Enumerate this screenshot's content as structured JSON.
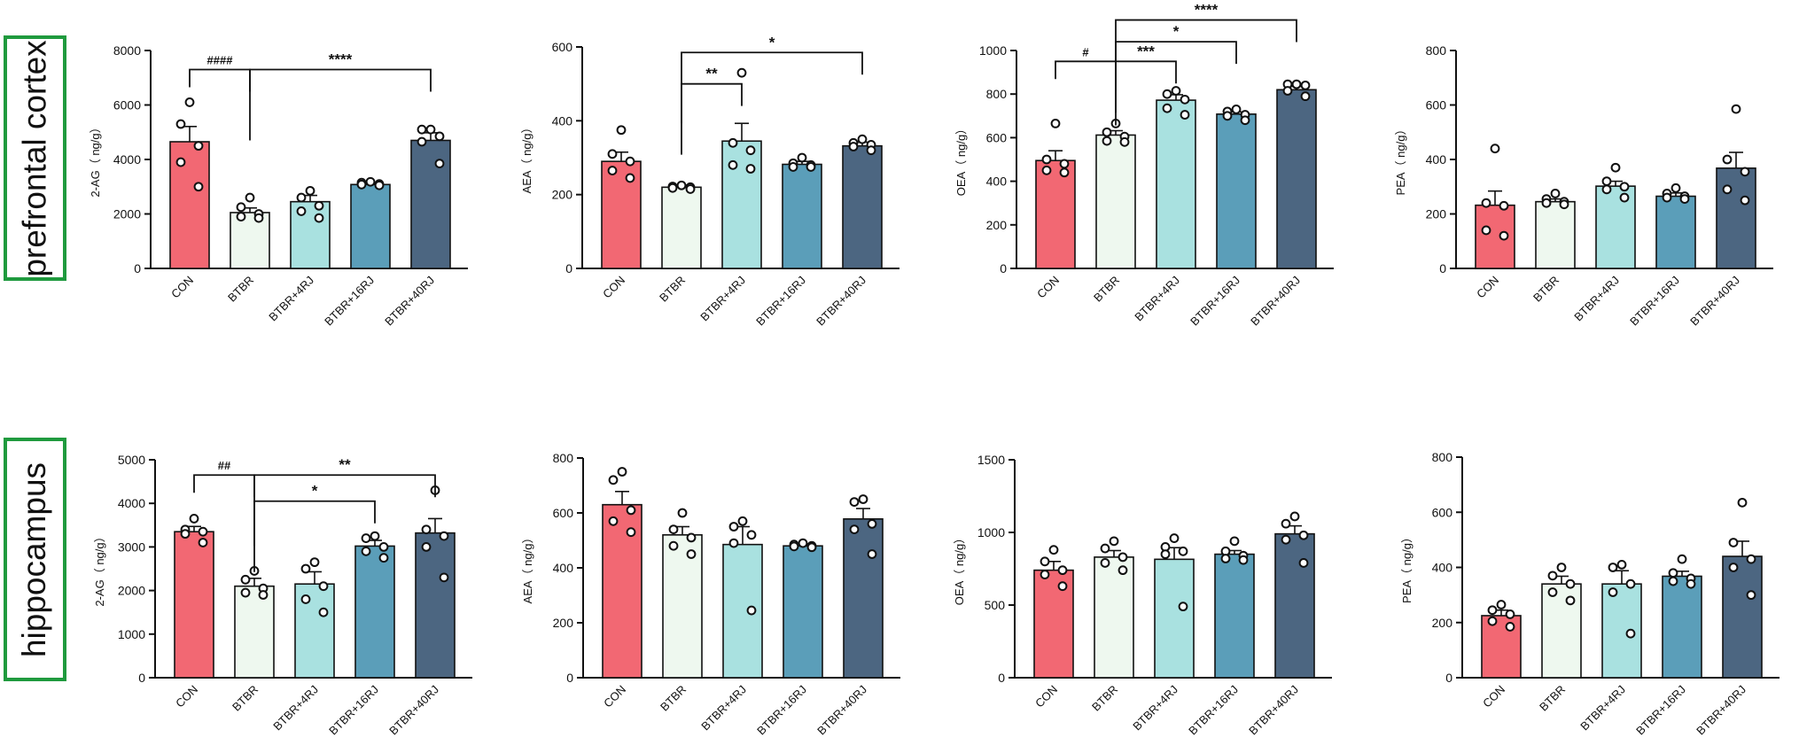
{
  "regions": [
    "prefrontal cortex",
    "hippocampus"
  ],
  "colors": {
    "CON": "#f26873",
    "BTBR": "#eef8ef",
    "BTBR+4RJ": "#a9e1e0",
    "BTBR+16RJ": "#5b9eb9",
    "BTBR+40RJ": "#4c6681",
    "region_border": "#1f9a3e"
  },
  "chart_data": [
    {
      "type": "bar",
      "region": "prefrontal cortex",
      "categories": [
        "CON",
        "BTBR",
        "BTBR+4RJ",
        "BTBR+16RJ",
        "BTBR+40RJ"
      ],
      "ylabel": "2-AG（ ng/g）",
      "ylim": [
        0,
        8000
      ],
      "yticks": [
        "0",
        "2000",
        "4000",
        "6000",
        "8000"
      ],
      "values": [
        4650,
        2050,
        2450,
        3080,
        4700
      ],
      "sem": [
        560,
        170,
        230,
        60,
        280
      ],
      "points": [
        [
          6100,
          5300,
          4500,
          3900,
          3000
        ],
        [
          2600,
          2250,
          2000,
          1900,
          1850
        ],
        [
          2850,
          2600,
          2300,
          2100,
          1850
        ],
        [
          3180,
          3150,
          3100,
          3080,
          3050
        ],
        [
          5100,
          5100,
          4850,
          4650,
          3850
        ]
      ],
      "annotations": [
        {
          "from": 0,
          "to": 1,
          "label": "####",
          "y": 7300
        },
        {
          "from": 1,
          "to": 4,
          "label": "****",
          "y": 7300
        }
      ]
    },
    {
      "type": "bar",
      "region": "prefrontal cortex",
      "categories": [
        "CON",
        "BTBR",
        "BTBR+4RJ",
        "BTBR+16RJ",
        "BTBR+40RJ"
      ],
      "ylabel": "AEA（ ng/g）",
      "ylim": [
        0,
        600
      ],
      "yticks": [
        "0",
        "200",
        "400",
        "600"
      ],
      "values": [
        290,
        220,
        345,
        282,
        332
      ],
      "sem": [
        25,
        6,
        48,
        8,
        10
      ],
      "points": [
        [
          375,
          310,
          290,
          265,
          245
        ],
        [
          225,
          222,
          220,
          218,
          215
        ],
        [
          530,
          340,
          320,
          280,
          270
        ],
        [
          300,
          285,
          280,
          275,
          275
        ],
        [
          350,
          340,
          335,
          330,
          320
        ]
      ],
      "annotations": [
        {
          "from": 1,
          "to": 2,
          "label": "**",
          "y": 500
        },
        {
          "from": 1,
          "to": 4,
          "label": "*",
          "y": 585
        }
      ]
    },
    {
      "type": "bar",
      "region": "prefrontal cortex",
      "categories": [
        "CON",
        "BTBR",
        "BTBR+4RJ",
        "BTBR+16RJ",
        "BTBR+40RJ"
      ],
      "ylabel": "OEA（ ng/g）",
      "ylim": [
        0,
        1000
      ],
      "yticks": [
        "0",
        "200",
        "400",
        "600",
        "800",
        "1000"
      ],
      "values": [
        495,
        612,
        772,
        708,
        820
      ],
      "sem": [
        45,
        20,
        25,
        10,
        15
      ],
      "points": [
        [
          665,
          500,
          480,
          450,
          440
        ],
        [
          665,
          625,
          605,
          585,
          580
        ],
        [
          815,
          800,
          775,
          735,
          705
        ],
        [
          730,
          720,
          705,
          700,
          680
        ],
        [
          845,
          845,
          840,
          815,
          790
        ]
      ],
      "annotations": [
        {
          "from": 0,
          "to": 1,
          "label": "#",
          "y": 950
        },
        {
          "from": 1,
          "to": 2,
          "label": "***",
          "y": 950
        },
        {
          "from": 1,
          "to": 3,
          "label": "*",
          "y": 1040
        },
        {
          "from": 1,
          "to": 4,
          "label": "****",
          "y": 1140
        }
      ]
    },
    {
      "type": "bar",
      "region": "prefrontal cortex",
      "categories": [
        "CON",
        "BTBR",
        "BTBR+4RJ",
        "BTBR+16RJ",
        "BTBR+40RJ"
      ],
      "ylabel": "PEA（ ng/g）",
      "ylim": [
        0,
        800
      ],
      "yticks": [
        "0",
        "200",
        "400",
        "600",
        "800"
      ],
      "values": [
        232,
        245,
        302,
        265,
        368
      ],
      "sem": [
        52,
        10,
        18,
        12,
        58
      ],
      "points": [
        [
          440,
          240,
          230,
          140,
          120
        ],
        [
          275,
          255,
          245,
          240,
          235
        ],
        [
          370,
          320,
          300,
          290,
          260
        ],
        [
          295,
          275,
          265,
          260,
          255
        ],
        [
          585,
          400,
          355,
          290,
          250
        ]
      ],
      "annotations": []
    },
    {
      "type": "bar",
      "region": "hippocampus",
      "categories": [
        "CON",
        "BTBR",
        "BTBR+4RJ",
        "BTBR+16RJ",
        "BTBR+40RJ"
      ],
      "ylabel": "2-AG（ ng/g）",
      "ylim": [
        0,
        5000
      ],
      "yticks": [
        "0",
        "1000",
        "2000",
        "3000",
        "4000",
        "5000"
      ],
      "values": [
        3350,
        2100,
        2150,
        3020,
        3320
      ],
      "sem": [
        120,
        180,
        280,
        130,
        330
      ],
      "points": [
        [
          3650,
          3400,
          3350,
          3300,
          3100
        ],
        [
          2450,
          2250,
          2050,
          1950,
          1900
        ],
        [
          2650,
          2500,
          2100,
          1800,
          1500
        ],
        [
          3250,
          3200,
          3000,
          2900,
          2750
        ],
        [
          4300,
          3400,
          3250,
          3000,
          2300
        ]
      ],
      "annotations": [
        {
          "from": 0,
          "to": 1,
          "label": "##",
          "y": 4650
        },
        {
          "from": 1,
          "to": 4,
          "label": "**",
          "y": 4650
        },
        {
          "from": 1,
          "to": 3,
          "label": "*",
          "y": 4050
        }
      ]
    },
    {
      "type": "bar",
      "region": "hippocampus",
      "categories": [
        "CON",
        "BTBR",
        "BTBR+4RJ",
        "BTBR+16RJ",
        "BTBR+40RJ"
      ],
      "ylabel": "AEA（ ng/g）",
      "ylim": [
        0,
        800
      ],
      "yticks": [
        "0",
        "200",
        "400",
        "600",
        "800"
      ],
      "values": [
        630,
        520,
        485,
        480,
        578
      ],
      "sem": [
        48,
        30,
        65,
        8,
        38
      ],
      "points": [
        [
          750,
          720,
          610,
          570,
          530
        ],
        [
          600,
          540,
          510,
          480,
          450
        ],
        [
          570,
          550,
          520,
          490,
          245
        ],
        [
          490,
          485,
          480,
          478,
          475
        ],
        [
          650,
          640,
          560,
          540,
          450
        ]
      ],
      "annotations": []
    },
    {
      "type": "bar",
      "region": "hippocampus",
      "categories": [
        "CON",
        "BTBR",
        "BTBR+4RJ",
        "BTBR+16RJ",
        "BTBR+40RJ"
      ],
      "ylabel": "OEA（ ng/g）",
      "ylim": [
        0,
        1500
      ],
      "yticks": [
        "0",
        "500",
        "1000",
        "1500"
      ],
      "values": [
        740,
        830,
        815,
        850,
        990
      ],
      "sem": [
        60,
        45,
        80,
        25,
        55
      ],
      "points": [
        [
          880,
          800,
          740,
          710,
          630
        ],
        [
          940,
          890,
          830,
          790,
          740
        ],
        [
          960,
          900,
          870,
          850,
          490
        ],
        [
          940,
          870,
          840,
          820,
          810
        ],
        [
          1110,
          1060,
          980,
          950,
          790
        ]
      ],
      "annotations": []
    },
    {
      "type": "bar",
      "region": "hippocampus",
      "categories": [
        "CON",
        "BTBR",
        "BTBR+4RJ",
        "BTBR+16RJ",
        "BTBR+40RJ"
      ],
      "ylabel": "PEA（ ng/g）",
      "ylim": [
        0,
        800
      ],
      "yticks": [
        "0",
        "200",
        "400",
        "600",
        "800"
      ],
      "values": [
        225,
        340,
        340,
        368,
        440
      ],
      "sem": [
        20,
        28,
        48,
        18,
        55
      ],
      "points": [
        [
          265,
          245,
          230,
          205,
          185
        ],
        [
          400,
          370,
          340,
          310,
          280
        ],
        [
          410,
          400,
          340,
          310,
          160
        ],
        [
          430,
          380,
          360,
          350,
          340
        ],
        [
          635,
          490,
          430,
          400,
          300
        ]
      ],
      "annotations": []
    }
  ]
}
